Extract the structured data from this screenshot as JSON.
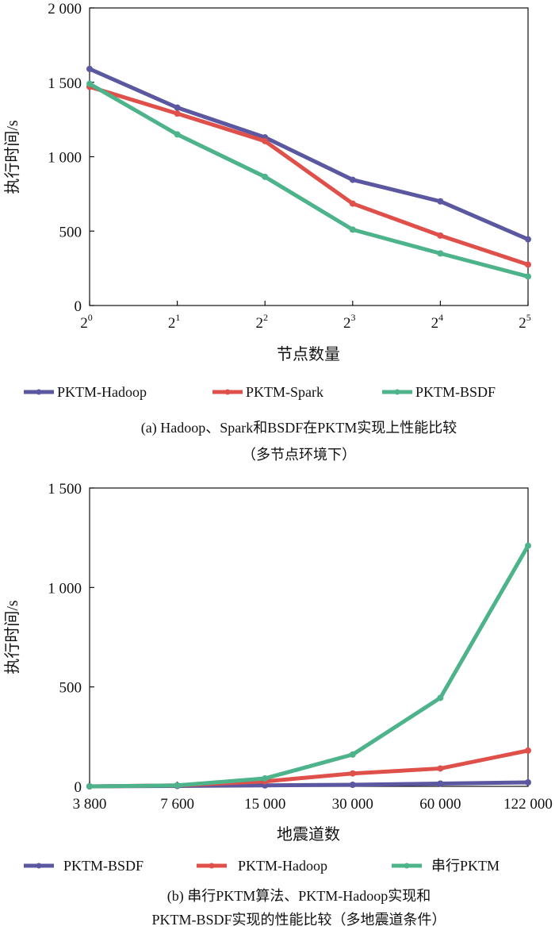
{
  "chart_data": [
    {
      "id": "a",
      "type": "line",
      "x": [
        "2^0",
        "2^1",
        "2^2",
        "2^3",
        "2^4",
        "2^5"
      ],
      "x_ticks": [
        {
          "base": "2",
          "exp": "0"
        },
        {
          "base": "2",
          "exp": "1"
        },
        {
          "base": "2",
          "exp": "2"
        },
        {
          "base": "2",
          "exp": "3"
        },
        {
          "base": "2",
          "exp": "4"
        },
        {
          "base": "2",
          "exp": "5"
        }
      ],
      "y_ticks": [
        "0",
        "500",
        "1 000",
        "1 500",
        "2 000"
      ],
      "y_tick_values": [
        0,
        500,
        1000,
        1500,
        2000
      ],
      "ylim": [
        0,
        2000
      ],
      "xlabel": "节点数量",
      "ylabel": "执行时间/s",
      "series": [
        {
          "name": "PKTM-Hadoop",
          "color": "#5b57a0",
          "values": [
            1590,
            1330,
            1130,
            845,
            700,
            445
          ]
        },
        {
          "name": "PKTM-Spark",
          "color": "#e0504b",
          "values": [
            1470,
            1290,
            1105,
            685,
            470,
            275
          ]
        },
        {
          "name": "PKTM-BSDF",
          "color": "#4db38a",
          "values": [
            1490,
            1150,
            865,
            510,
            350,
            195
          ]
        }
      ],
      "caption": [
        "(a) Hadoop、Spark和BSDF在PKTM实现上性能比较",
        "（多节点环境下）"
      ]
    },
    {
      "id": "b",
      "type": "line",
      "x": [
        "3 800",
        "7 600",
        "15 000",
        "30 000",
        "60 000",
        "122 000"
      ],
      "y_ticks": [
        "0",
        "500",
        "1 000",
        "1 500"
      ],
      "y_tick_values": [
        0,
        500,
        1000,
        1500
      ],
      "ylim": [
        0,
        1500
      ],
      "xlabel": "地震道数",
      "ylabel": "执行时间/s",
      "series": [
        {
          "name": "PKTM-BSDF",
          "color": "#5b57a0",
          "values": [
            0,
            2,
            5,
            8,
            14,
            20
          ]
        },
        {
          "name": "PKTM-Hadoop",
          "color": "#e0504b",
          "values": [
            0,
            5,
            25,
            65,
            90,
            180
          ]
        },
        {
          "name": "串行PKTM",
          "color": "#4db38a",
          "values": [
            0,
            5,
            40,
            160,
            445,
            1210
          ]
        }
      ],
      "caption": [
        "(b) 串行PKTM算法、PKTM-Hadoop实现和",
        "PKTM-BSDF实现的性能比较（多地震道条件）"
      ]
    }
  ]
}
